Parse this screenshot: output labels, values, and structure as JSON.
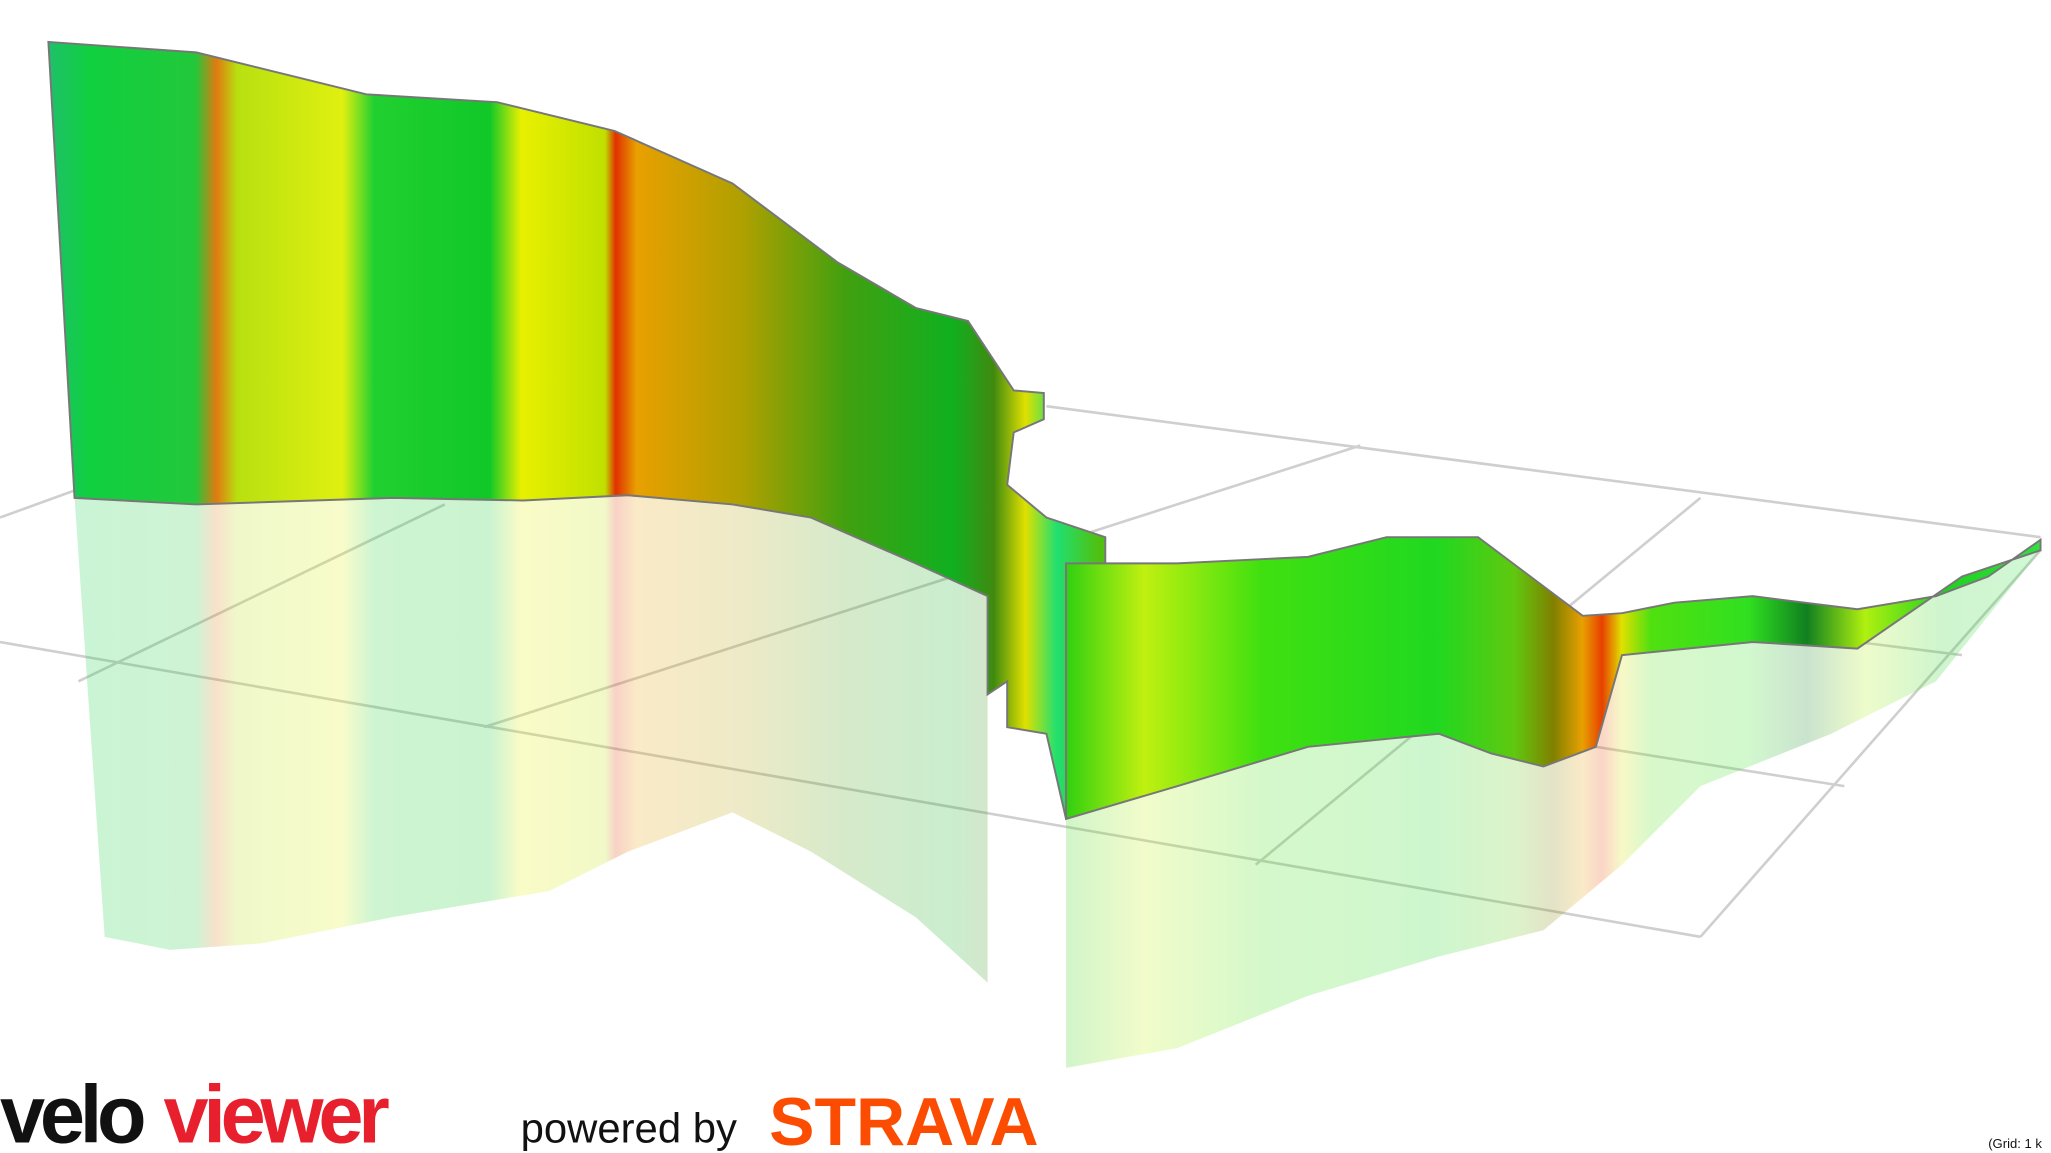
{
  "logo": {
    "velo": "velo",
    "viewer": "viewer"
  },
  "powered_by": "powered by",
  "strava": "STRAVA",
  "grid_note": "(Grid: 1 k"
}
